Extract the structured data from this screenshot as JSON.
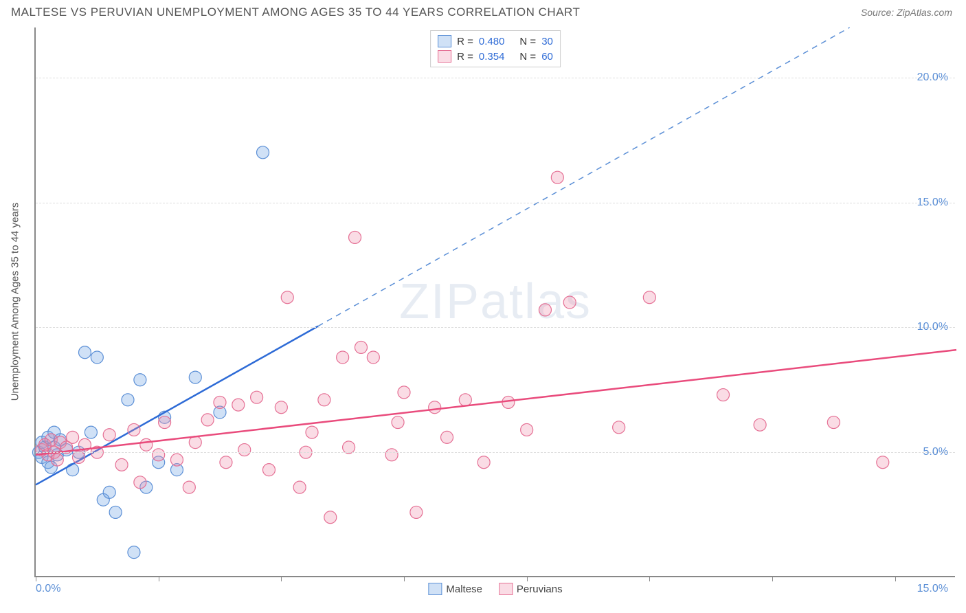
{
  "title": "MALTESE VS PERUVIAN UNEMPLOYMENT AMONG AGES 35 TO 44 YEARS CORRELATION CHART",
  "source": "Source: ZipAtlas.com",
  "watermark": "ZIPatlas",
  "y_axis_title": "Unemployment Among Ages 35 to 44 years",
  "chart": {
    "type": "scatter",
    "background_color": "#ffffff",
    "grid_color": "#dddddd",
    "axis_color": "#888888",
    "xlim": [
      0,
      15
    ],
    "ylim": [
      0,
      22
    ],
    "x_tick_positions": [
      0,
      2,
      4,
      6,
      8,
      10,
      12,
      14
    ],
    "x_axis_label_min": "0.0%",
    "x_axis_label_max": "15.0%",
    "y_ticks": [
      {
        "value": 5,
        "label": "5.0%"
      },
      {
        "value": 10,
        "label": "10.0%"
      },
      {
        "value": 15,
        "label": "15.0%"
      },
      {
        "value": 20,
        "label": "20.0%"
      }
    ],
    "series": [
      {
        "name": "Maltese",
        "marker_color_fill": "rgba(120, 170, 230, 0.35)",
        "marker_color_stroke": "#5b8fd6",
        "marker_radius": 9,
        "line_color": "#2e6bd6",
        "line_width": 2.5,
        "dash_extension_color": "#5b8fd6",
        "regression": {
          "slope": 1.38,
          "intercept": 3.7,
          "x_solid_max": 4.6
        },
        "R": "0.480",
        "N": "30",
        "points": [
          [
            0.05,
            5.0
          ],
          [
            0.1,
            4.8
          ],
          [
            0.1,
            5.4
          ],
          [
            0.15,
            5.2
          ],
          [
            0.2,
            4.6
          ],
          [
            0.2,
            5.6
          ],
          [
            0.25,
            4.4
          ],
          [
            0.3,
            5.2
          ],
          [
            0.3,
            5.8
          ],
          [
            0.35,
            4.9
          ],
          [
            0.4,
            5.5
          ],
          [
            0.5,
            5.1
          ],
          [
            0.6,
            4.3
          ],
          [
            0.7,
            5.0
          ],
          [
            0.8,
            9.0
          ],
          [
            0.9,
            5.8
          ],
          [
            1.0,
            8.8
          ],
          [
            1.1,
            3.1
          ],
          [
            1.2,
            3.4
          ],
          [
            1.3,
            2.6
          ],
          [
            1.5,
            7.1
          ],
          [
            1.6,
            1.0
          ],
          [
            1.7,
            7.9
          ],
          [
            1.8,
            3.6
          ],
          [
            2.0,
            4.6
          ],
          [
            2.1,
            6.4
          ],
          [
            2.3,
            4.3
          ],
          [
            2.6,
            8.0
          ],
          [
            3.0,
            6.6
          ],
          [
            3.7,
            17.0
          ]
        ]
      },
      {
        "name": "Peruvians",
        "marker_color_fill": "rgba(240, 140, 170, 0.30)",
        "marker_color_stroke": "#e56f94",
        "marker_radius": 9,
        "line_color": "#e94b7c",
        "line_width": 2.5,
        "regression": {
          "slope": 0.28,
          "intercept": 4.9,
          "x_solid_max": 15
        },
        "R": "0.354",
        "N": "60",
        "points": [
          [
            0.1,
            5.1
          ],
          [
            0.15,
            5.3
          ],
          [
            0.2,
            4.9
          ],
          [
            0.25,
            5.5
          ],
          [
            0.3,
            5.0
          ],
          [
            0.35,
            4.7
          ],
          [
            0.4,
            5.4
          ],
          [
            0.5,
            5.2
          ],
          [
            0.6,
            5.6
          ],
          [
            0.7,
            4.8
          ],
          [
            0.8,
            5.3
          ],
          [
            1.0,
            5.0
          ],
          [
            1.2,
            5.7
          ],
          [
            1.4,
            4.5
          ],
          [
            1.6,
            5.9
          ],
          [
            1.7,
            3.8
          ],
          [
            1.8,
            5.3
          ],
          [
            2.0,
            4.9
          ],
          [
            2.1,
            6.2
          ],
          [
            2.3,
            4.7
          ],
          [
            2.5,
            3.6
          ],
          [
            2.6,
            5.4
          ],
          [
            2.8,
            6.3
          ],
          [
            3.0,
            7.0
          ],
          [
            3.1,
            4.6
          ],
          [
            3.3,
            6.9
          ],
          [
            3.4,
            5.1
          ],
          [
            3.6,
            7.2
          ],
          [
            3.8,
            4.3
          ],
          [
            4.0,
            6.8
          ],
          [
            4.1,
            11.2
          ],
          [
            4.3,
            3.6
          ],
          [
            4.5,
            5.8
          ],
          [
            4.7,
            7.1
          ],
          [
            4.8,
            2.4
          ],
          [
            5.0,
            8.8
          ],
          [
            5.1,
            5.2
          ],
          [
            5.2,
            13.6
          ],
          [
            5.3,
            9.2
          ],
          [
            5.5,
            8.8
          ],
          [
            5.8,
            4.9
          ],
          [
            5.9,
            6.2
          ],
          [
            6.2,
            2.6
          ],
          [
            6.5,
            6.8
          ],
          [
            6.7,
            5.6
          ],
          [
            7.0,
            7.1
          ],
          [
            7.3,
            4.6
          ],
          [
            7.7,
            7.0
          ],
          [
            8.0,
            5.9
          ],
          [
            8.3,
            10.7
          ],
          [
            8.5,
            16.0
          ],
          [
            8.7,
            11.0
          ],
          [
            9.5,
            6.0
          ],
          [
            10.0,
            11.2
          ],
          [
            11.2,
            7.3
          ],
          [
            11.8,
            6.1
          ],
          [
            13.8,
            4.6
          ],
          [
            13.0,
            6.2
          ],
          [
            6.0,
            7.4
          ],
          [
            4.4,
            5.0
          ]
        ]
      }
    ]
  },
  "legend_top": {
    "rows": [
      {
        "swatch_fill": "rgba(120, 170, 230, 0.35)",
        "swatch_stroke": "#5b8fd6",
        "R_label": "R =",
        "R_val": "0.480",
        "N_label": "N =",
        "N_val": "30"
      },
      {
        "swatch_fill": "rgba(240, 140, 170, 0.30)",
        "swatch_stroke": "#e56f94",
        "R_label": "R =",
        "R_val": "0.354",
        "N_label": "N =",
        "N_val": "60"
      }
    ]
  },
  "legend_bottom": {
    "items": [
      {
        "swatch_fill": "rgba(120, 170, 230, 0.35)",
        "swatch_stroke": "#5b8fd6",
        "label": "Maltese"
      },
      {
        "swatch_fill": "rgba(240, 140, 170, 0.30)",
        "swatch_stroke": "#e56f94",
        "label": "Peruvians"
      }
    ]
  }
}
